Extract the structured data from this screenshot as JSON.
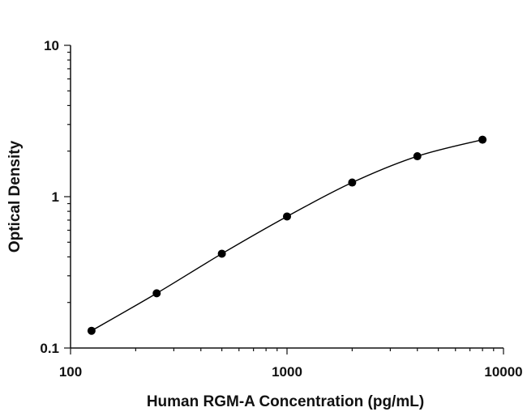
{
  "chart_data": {
    "type": "scatter",
    "xlabel": "Human RGM-A Concentration (pg/mL)",
    "ylabel": "Optical Density",
    "x_scale": "log",
    "y_scale": "log",
    "xlim": [
      100,
      10000
    ],
    "ylim": [
      0.1,
      10
    ],
    "x_ticks": [
      {
        "value": 100,
        "label": "100"
      },
      {
        "value": 1000,
        "label": "1000"
      },
      {
        "value": 10000,
        "label": "10000"
      }
    ],
    "y_ticks": [
      {
        "value": 0.1,
        "label": "0.1"
      },
      {
        "value": 1,
        "label": "1"
      },
      {
        "value": 10,
        "label": "10"
      }
    ],
    "grid": false,
    "legend": "none",
    "fit_curve": true,
    "points": [
      {
        "x": 125,
        "y": 0.13
      },
      {
        "x": 250,
        "y": 0.23
      },
      {
        "x": 500,
        "y": 0.42
      },
      {
        "x": 1000,
        "y": 0.74
      },
      {
        "x": 2000,
        "y": 1.24
      },
      {
        "x": 4000,
        "y": 1.85
      },
      {
        "x": 8000,
        "y": 2.38
      }
    ],
    "colors": {
      "marker": "#000000",
      "curve": "#000000",
      "axis": "#111111"
    }
  }
}
